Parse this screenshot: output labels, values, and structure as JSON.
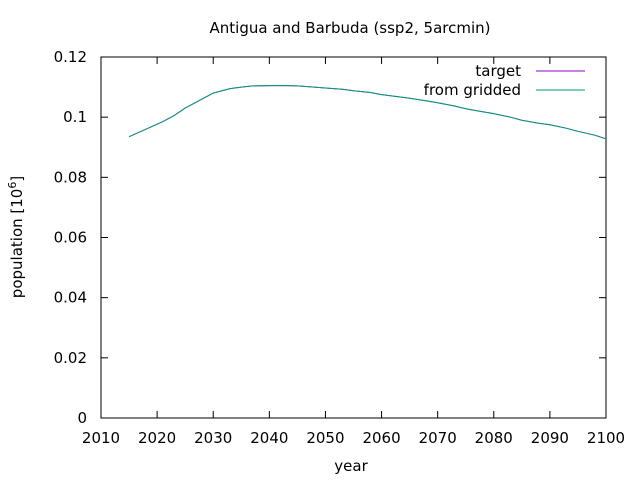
{
  "chart_data": {
    "type": "line",
    "title": "Antigua and Barbuda (ssp2, 5arcmin)",
    "xlabel": "year",
    "ylabel_main": "population [10",
    "ylabel_sup": "6",
    "ylabel_end": "]",
    "xlim": [
      2010,
      2100
    ],
    "ylim": [
      0,
      0.12
    ],
    "xticks": [
      2010,
      2020,
      2030,
      2040,
      2050,
      2060,
      2070,
      2080,
      2090,
      2100
    ],
    "xtick_labels": [
      "2010",
      "2020",
      "2030",
      "2040",
      "2050",
      "2060",
      "2070",
      "2080",
      "2090",
      "2100"
    ],
    "yticks": [
      0,
      0.02,
      0.04,
      0.06,
      0.08,
      0.1,
      0.12
    ],
    "ytick_labels": [
      "0",
      "0.02",
      "0.04",
      "0.06",
      "0.08",
      "0.1",
      "0.12"
    ],
    "grid": false,
    "legend_position": "top-right",
    "series": [
      {
        "name": "target",
        "color": "#9400d3",
        "x": [
          2015,
          2018,
          2021,
          2023,
          2025,
          2028,
          2030,
          2033,
          2035,
          2037,
          2040,
          2043,
          2045,
          2048,
          2050,
          2053,
          2055,
          2058,
          2060,
          2063,
          2065,
          2068,
          2070,
          2073,
          2075,
          2078,
          2080,
          2083,
          2085,
          2088,
          2090,
          2093,
          2095,
          2098,
          2100
        ],
        "y": [
          0.0935,
          0.096,
          0.0985,
          0.1005,
          0.103,
          0.106,
          0.108,
          0.1095,
          0.11,
          0.1104,
          0.1105,
          0.1105,
          0.1104,
          0.11,
          0.1097,
          0.1093,
          0.1088,
          0.1082,
          0.1075,
          0.1068,
          0.1063,
          0.1054,
          0.1048,
          0.1037,
          0.1028,
          0.1018,
          0.1012,
          0.1,
          0.099,
          0.098,
          0.0975,
          0.0963,
          0.0953,
          0.094,
          0.0928
        ]
      },
      {
        "name": "from gridded",
        "color": "#009e73",
        "x": [
          2015,
          2018,
          2021,
          2023,
          2025,
          2028,
          2030,
          2033,
          2035,
          2037,
          2040,
          2043,
          2045,
          2048,
          2050,
          2053,
          2055,
          2058,
          2060,
          2063,
          2065,
          2068,
          2070,
          2073,
          2075,
          2078,
          2080,
          2083,
          2085,
          2088,
          2090,
          2093,
          2095,
          2098,
          2100
        ],
        "y": [
          0.0935,
          0.096,
          0.0985,
          0.1005,
          0.103,
          0.106,
          0.108,
          0.1095,
          0.11,
          0.1104,
          0.1105,
          0.1105,
          0.1104,
          0.11,
          0.1097,
          0.1093,
          0.1088,
          0.1082,
          0.1075,
          0.1068,
          0.1063,
          0.1054,
          0.1048,
          0.1037,
          0.1028,
          0.1018,
          0.1012,
          0.1,
          0.099,
          0.098,
          0.0975,
          0.0963,
          0.0953,
          0.094,
          0.0928
        ]
      }
    ]
  }
}
